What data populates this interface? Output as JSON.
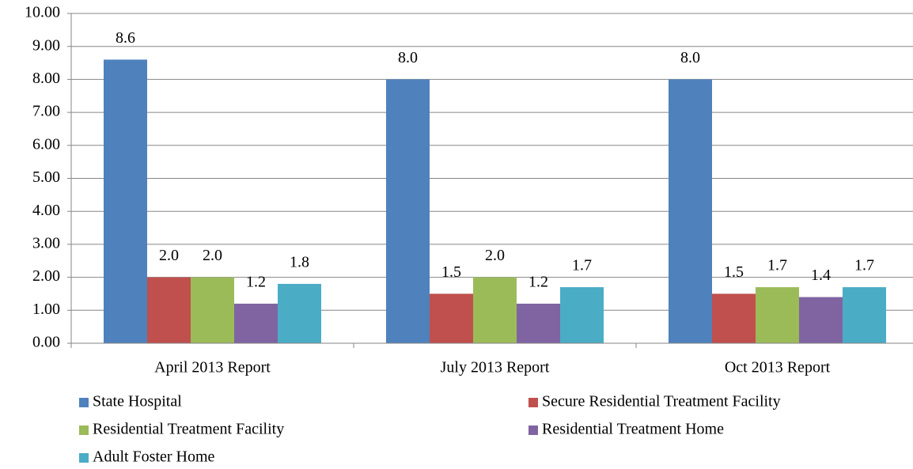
{
  "chart_data": {
    "type": "bar",
    "categories": [
      "April 2013 Report",
      "July 2013 Report",
      "Oct 2013 Report"
    ],
    "series": [
      {
        "name": "State Hospital",
        "color": "#4f81bd",
        "values": [
          8.6,
          8.0,
          8.0
        ],
        "value_labels": [
          "8.6",
          "8.0",
          "8.0"
        ]
      },
      {
        "name": "Secure Residential Treatment Facility",
        "color": "#c0504d",
        "values": [
          2.0,
          1.5,
          1.5
        ],
        "value_labels": [
          "2.0",
          "1.5",
          "1.5"
        ]
      },
      {
        "name": "Residential Treatment Facility",
        "color": "#9bbb59",
        "values": [
          2.0,
          2.0,
          1.7
        ],
        "value_labels": [
          "2.0",
          "2.0",
          "1.7"
        ]
      },
      {
        "name": "Residential Treatment Home",
        "color": "#8064a2",
        "values": [
          1.2,
          1.2,
          1.4
        ],
        "value_labels": [
          "1.2",
          "1.2",
          "1.4"
        ]
      },
      {
        "name": "Adult Foster Home",
        "color": "#4bacc6",
        "values": [
          1.8,
          1.7,
          1.7
        ],
        "value_labels": [
          "1.8",
          "1.7",
          "1.7"
        ]
      }
    ],
    "ylim": [
      0,
      10
    ],
    "yticks": [
      {
        "value": 0,
        "label": "0.00"
      },
      {
        "value": 1,
        "label": "1.00"
      },
      {
        "value": 2,
        "label": "2.00"
      },
      {
        "value": 3,
        "label": "3.00"
      },
      {
        "value": 4,
        "label": "4.00"
      },
      {
        "value": 5,
        "label": "5.00"
      },
      {
        "value": 6,
        "label": "6.00"
      },
      {
        "value": 7,
        "label": "7.00"
      },
      {
        "value": 8,
        "label": "8.00"
      },
      {
        "value": 9,
        "label": "9.00"
      },
      {
        "value": 10,
        "label": "10.00"
      }
    ],
    "grid": true,
    "legend": "bottom"
  }
}
